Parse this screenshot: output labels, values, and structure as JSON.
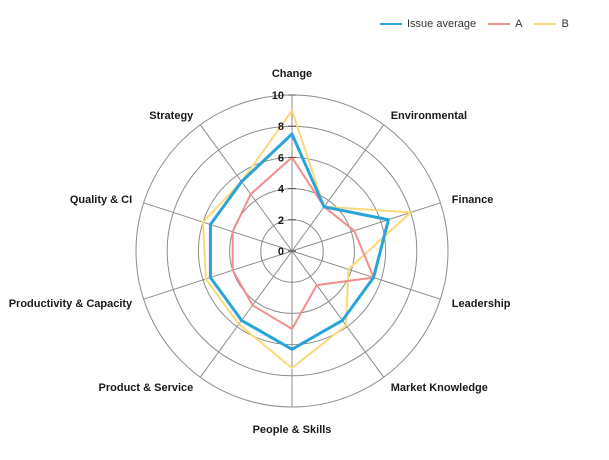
{
  "chart_data": {
    "type": "radar",
    "axes": [
      "Change",
      "Environmental",
      "Finance",
      "Leadership",
      "Market Knowledge",
      "People & Skills",
      "Product & Service",
      "Productivity & Capacity",
      "Quality & CI",
      "Strategy"
    ],
    "rlim": [
      0,
      10
    ],
    "ticks": [
      0,
      2,
      4,
      6,
      8,
      10
    ],
    "grid": true,
    "legend_position": "top-right",
    "series": [
      {
        "name": "Issue average",
        "color": "#29a3d8",
        "values": [
          7.5,
          3.5,
          6.5,
          5.5,
          5.5,
          6.3,
          5.5,
          5.5,
          5.5,
          5.5
        ]
      },
      {
        "name": "A",
        "color": "#f28e8e",
        "values": [
          6.0,
          3.5,
          4.2,
          5.5,
          2.7,
          5.0,
          4.3,
          4.0,
          4.0,
          4.5
        ]
      },
      {
        "name": "B",
        "color": "#f9d97a",
        "values": [
          9.0,
          3.5,
          8.0,
          3.8,
          5.9,
          7.5,
          5.8,
          5.8,
          6.0,
          5.5
        ]
      }
    ]
  }
}
